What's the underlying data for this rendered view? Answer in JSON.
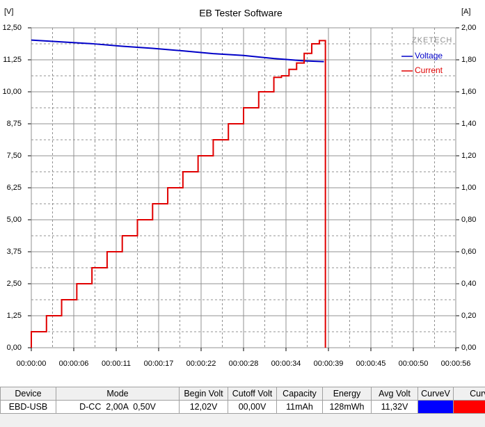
{
  "chart_data": {
    "type": "line",
    "title": "EB Tester Software",
    "ylabel": "[V]",
    "y2label": "[A]",
    "watermark": "ZKETECH",
    "xlim": [
      0,
      56
    ],
    "xticks": [
      {
        "value": 0,
        "label": "00:00:00"
      },
      {
        "value": 5.6,
        "label": "00:00:06"
      },
      {
        "value": 11.2,
        "label": "00:00:11"
      },
      {
        "value": 16.8,
        "label": "00:00:17"
      },
      {
        "value": 22.4,
        "label": "00:00:22"
      },
      {
        "value": 28,
        "label": "00:00:28"
      },
      {
        "value": 33.6,
        "label": "00:00:34"
      },
      {
        "value": 39.2,
        "label": "00:00:39"
      },
      {
        "value": 44.8,
        "label": "00:00:45"
      },
      {
        "value": 50.4,
        "label": "00:00:50"
      },
      {
        "value": 56,
        "label": "00:00:56"
      }
    ],
    "ylim": [
      0,
      12.5
    ],
    "yticks": [
      {
        "value": 0,
        "label": "0,00"
      },
      {
        "value": 1.25,
        "label": "1,25"
      },
      {
        "value": 2.5,
        "label": "2,50"
      },
      {
        "value": 3.75,
        "label": "3,75"
      },
      {
        "value": 5,
        "label": "5,00"
      },
      {
        "value": 6.25,
        "label": "6,25"
      },
      {
        "value": 7.5,
        "label": "7,50"
      },
      {
        "value": 8.75,
        "label": "8,75"
      },
      {
        "value": 10,
        "label": "10,00"
      },
      {
        "value": 11.25,
        "label": "11,25"
      },
      {
        "value": 12.5,
        "label": "12,50"
      }
    ],
    "y2lim": [
      0,
      2
    ],
    "y2ticks": [
      {
        "value": 0,
        "label": "0,00"
      },
      {
        "value": 0.2,
        "label": "0,20"
      },
      {
        "value": 0.4,
        "label": "0,40"
      },
      {
        "value": 0.6,
        "label": "0,60"
      },
      {
        "value": 0.8,
        "label": "0,80"
      },
      {
        "value": 1,
        "label": "1,00"
      },
      {
        "value": 1.2,
        "label": "1,20"
      },
      {
        "value": 1.4,
        "label": "1,40"
      },
      {
        "value": 1.6,
        "label": "1,60"
      },
      {
        "value": 1.8,
        "label": "1,80"
      },
      {
        "value": 2,
        "label": "2,00"
      }
    ],
    "grid": true,
    "legend": "upper right",
    "series": [
      {
        "name": "Voltage",
        "color": "#0000c8",
        "axis": "y",
        "x": [
          0,
          4,
          8,
          12,
          16,
          20,
          24,
          28,
          32,
          36,
          38.6
        ],
        "values": [
          12.02,
          11.95,
          11.88,
          11.78,
          11.7,
          11.6,
          11.49,
          11.42,
          11.3,
          11.21,
          11.18
        ]
      },
      {
        "name": "Current",
        "color": "#e00000",
        "axis": "y2",
        "drawstyle": "steps-post",
        "x": [
          0,
          0,
          2,
          4,
          6,
          8,
          10,
          12,
          14,
          16,
          18,
          20,
          22,
          24,
          26,
          28,
          30,
          32,
          33,
          34,
          35,
          36,
          37,
          38,
          38.8
        ],
        "values": [
          0,
          0.1,
          0.2,
          0.3,
          0.4,
          0.5,
          0.6,
          0.7,
          0.8,
          0.9,
          1.0,
          1.1,
          1.2,
          1.3,
          1.4,
          1.5,
          1.6,
          1.69,
          1.7,
          1.74,
          1.78,
          1.84,
          1.9,
          1.92,
          0
        ]
      }
    ]
  },
  "table": {
    "headers": [
      "Device",
      "Mode",
      "Begin Volt",
      "Cutoff Volt",
      "Capacity",
      "Energy",
      "Avg Volt",
      "CurveV",
      "CurveA"
    ],
    "rows": [
      [
        "EBD-USB",
        "D-CC  2,00A  0,50V",
        "12,02V",
        "00,00V",
        "11mAh",
        "128mWh",
        "11,32V"
      ]
    ]
  }
}
